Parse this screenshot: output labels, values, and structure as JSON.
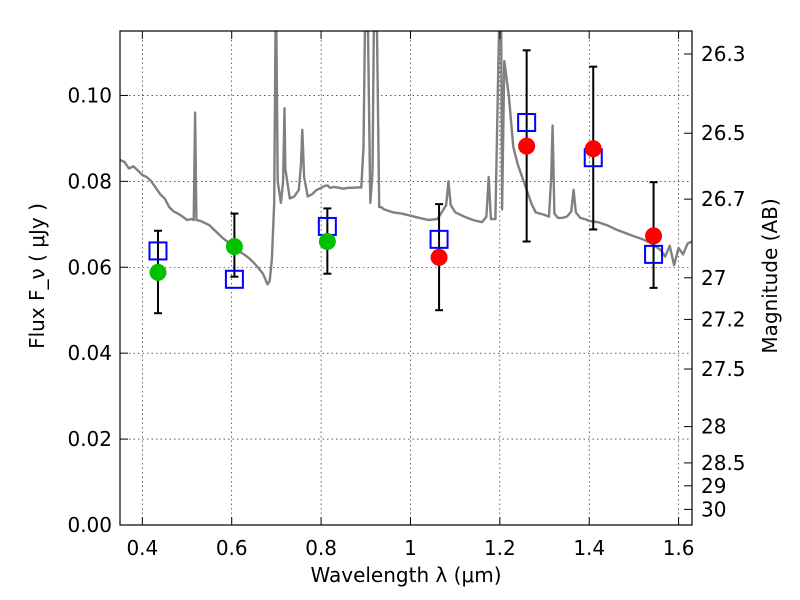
{
  "chart_data": {
    "type": "scatter",
    "xlabel": "Wavelength  λ (μm)",
    "ylabel": "Flux  F_ν  ( μJy )",
    "y2label": "Magnitude (AB)",
    "xlim": [
      0.35,
      1.63
    ],
    "ylim": [
      0.0,
      0.115
    ],
    "grid": true,
    "x_ticks": [
      {
        "value": 0.4,
        "label": "0.4"
      },
      {
        "value": 0.6,
        "label": "0.6"
      },
      {
        "value": 0.8,
        "label": "0.8"
      },
      {
        "value": 1.0,
        "label": "1"
      },
      {
        "value": 1.2,
        "label": "1.2"
      },
      {
        "value": 1.4,
        "label": "1.4"
      },
      {
        "value": 1.6,
        "label": "1.6"
      }
    ],
    "y_ticks": [
      {
        "value": 0.0,
        "label": "0.00"
      },
      {
        "value": 0.02,
        "label": "0.02"
      },
      {
        "value": 0.04,
        "label": "0.04"
      },
      {
        "value": 0.06,
        "label": "0.06"
      },
      {
        "value": 0.08,
        "label": "0.08"
      },
      {
        "value": 0.1,
        "label": "0.10"
      }
    ],
    "y2_ticks": [
      {
        "mag": 26.3,
        "label": "26.3"
      },
      {
        "mag": 26.5,
        "label": "26.5"
      },
      {
        "mag": 26.7,
        "label": "26.7"
      },
      {
        "mag": 27.0,
        "label": "27"
      },
      {
        "mag": 27.2,
        "label": "27.2"
      },
      {
        "mag": 27.5,
        "label": "27.5"
      },
      {
        "mag": 28.0,
        "label": "28"
      },
      {
        "mag": 28.5,
        "label": "28.5"
      },
      {
        "mag": 29.0,
        "label": "29"
      },
      {
        "mag": 30.0,
        "label": "30"
      }
    ],
    "series": [
      {
        "kind": "observed-errorbar",
        "points": [
          {
            "x": 0.435,
            "y": 0.0588,
            "err_lo": 0.0493,
            "err_hi": 0.0685,
            "color": "#00c000"
          },
          {
            "x": 0.606,
            "y": 0.0648,
            "err_lo": 0.0578,
            "err_hi": 0.0725,
            "color": "#00c000"
          },
          {
            "x": 0.814,
            "y": 0.066,
            "err_lo": 0.0585,
            "err_hi": 0.0737,
            "color": "#00c000"
          },
          {
            "x": 1.064,
            "y": 0.0623,
            "err_lo": 0.05,
            "err_hi": 0.0747,
            "color": "#ff0000"
          },
          {
            "x": 1.26,
            "y": 0.0882,
            "err_lo": 0.066,
            "err_hi": 0.1105,
            "color": "#ff0000"
          },
          {
            "x": 1.409,
            "y": 0.0876,
            "err_lo": 0.0688,
            "err_hi": 0.1067,
            "color": "#ff0000"
          },
          {
            "x": 1.544,
            "y": 0.0673,
            "err_lo": 0.0552,
            "err_hi": 0.0798,
            "color": "#ff0000"
          }
        ]
      },
      {
        "kind": "model-synthetic",
        "marker": "open-square",
        "color": "#0000ff",
        "points": [
          {
            "x": 0.435,
            "y": 0.0638
          },
          {
            "x": 0.606,
            "y": 0.0572
          },
          {
            "x": 0.814,
            "y": 0.0695
          },
          {
            "x": 1.064,
            "y": 0.0665
          },
          {
            "x": 1.26,
            "y": 0.0937
          },
          {
            "x": 1.409,
            "y": 0.0855
          },
          {
            "x": 1.544,
            "y": 0.063
          }
        ]
      },
      {
        "kind": "template-spectrum",
        "color": "#808080",
        "points": [
          [
            0.35,
            0.085
          ],
          [
            0.36,
            0.0845
          ],
          [
            0.37,
            0.083
          ],
          [
            0.38,
            0.0835
          ],
          [
            0.39,
            0.0825
          ],
          [
            0.4,
            0.0815
          ],
          [
            0.41,
            0.081
          ],
          [
            0.42,
            0.08
          ],
          [
            0.43,
            0.0785
          ],
          [
            0.44,
            0.077
          ],
          [
            0.45,
            0.076
          ],
          [
            0.46,
            0.074
          ],
          [
            0.47,
            0.073
          ],
          [
            0.48,
            0.0725
          ],
          [
            0.49,
            0.0718
          ],
          [
            0.5,
            0.071
          ],
          [
            0.51,
            0.0712
          ],
          [
            0.515,
            0.071
          ],
          [
            0.518,
            0.096
          ],
          [
            0.521,
            0.071
          ],
          [
            0.53,
            0.0708
          ],
          [
            0.54,
            0.0703
          ],
          [
            0.55,
            0.0698
          ],
          [
            0.56,
            0.0688
          ],
          [
            0.57,
            0.0678
          ],
          [
            0.58,
            0.0668
          ],
          [
            0.59,
            0.066
          ],
          [
            0.6,
            0.0652
          ],
          [
            0.61,
            0.0645
          ],
          [
            0.62,
            0.0635
          ],
          [
            0.63,
            0.0628
          ],
          [
            0.64,
            0.062
          ],
          [
            0.65,
            0.061
          ],
          [
            0.66,
            0.0598
          ],
          [
            0.67,
            0.0585
          ],
          [
            0.68,
            0.056
          ],
          [
            0.685,
            0.0568
          ],
          [
            0.69,
            0.062
          ],
          [
            0.695,
            0.075
          ],
          [
            0.698,
            0.115
          ],
          [
            0.7,
            0.115
          ],
          [
            0.703,
            0.08
          ],
          [
            0.71,
            0.075
          ],
          [
            0.715,
            0.08
          ],
          [
            0.718,
            0.097
          ],
          [
            0.72,
            0.083
          ],
          [
            0.73,
            0.076
          ],
          [
            0.74,
            0.0765
          ],
          [
            0.75,
            0.078
          ],
          [
            0.755,
            0.084
          ],
          [
            0.758,
            0.092
          ],
          [
            0.762,
            0.081
          ],
          [
            0.77,
            0.0765
          ],
          [
            0.78,
            0.077
          ],
          [
            0.79,
            0.078
          ],
          [
            0.8,
            0.0785
          ],
          [
            0.81,
            0.079
          ],
          [
            0.815,
            0.079
          ],
          [
            0.82,
            0.0785
          ],
          [
            0.83,
            0.0787
          ],
          [
            0.84,
            0.0785
          ],
          [
            0.85,
            0.0783
          ],
          [
            0.86,
            0.0785
          ],
          [
            0.87,
            0.0785
          ],
          [
            0.88,
            0.0786
          ],
          [
            0.89,
            0.0786
          ],
          [
            0.895,
            0.088
          ],
          [
            0.898,
            0.115
          ],
          [
            0.905,
            0.115
          ],
          [
            0.91,
            0.075
          ],
          [
            0.915,
            0.082
          ],
          [
            0.918,
            0.115
          ],
          [
            0.925,
            0.115
          ],
          [
            0.93,
            0.074
          ],
          [
            0.935,
            0.074
          ],
          [
            0.94,
            0.0735
          ],
          [
            0.96,
            0.0728
          ],
          [
            0.98,
            0.0725
          ],
          [
            1.0,
            0.072
          ],
          [
            1.02,
            0.0715
          ],
          [
            1.04,
            0.071
          ],
          [
            1.06,
            0.0712
          ],
          [
            1.07,
            0.0728
          ],
          [
            1.08,
            0.0745
          ],
          [
            1.085,
            0.08
          ],
          [
            1.09,
            0.0745
          ],
          [
            1.1,
            0.0728
          ],
          [
            1.12,
            0.0718
          ],
          [
            1.14,
            0.071
          ],
          [
            1.16,
            0.0705
          ],
          [
            1.17,
            0.0718
          ],
          [
            1.175,
            0.081
          ],
          [
            1.18,
            0.0712
          ],
          [
            1.19,
            0.0712
          ],
          [
            1.198,
            0.115
          ],
          [
            1.203,
            0.115
          ],
          [
            1.205,
            0.0735
          ],
          [
            1.21,
            0.108
          ],
          [
            1.22,
            0.1
          ],
          [
            1.23,
            0.088
          ],
          [
            1.24,
            0.084
          ],
          [
            1.25,
            0.081
          ],
          [
            1.26,
            0.078
          ],
          [
            1.27,
            0.075
          ],
          [
            1.28,
            0.0728
          ],
          [
            1.29,
            0.0725
          ],
          [
            1.3,
            0.0722
          ],
          [
            1.31,
            0.0718
          ],
          [
            1.315,
            0.081
          ],
          [
            1.318,
            0.093
          ],
          [
            1.322,
            0.0725
          ],
          [
            1.33,
            0.0715
          ],
          [
            1.34,
            0.0715
          ],
          [
            1.35,
            0.0718
          ],
          [
            1.36,
            0.073
          ],
          [
            1.365,
            0.078
          ],
          [
            1.37,
            0.0728
          ],
          [
            1.38,
            0.0715
          ],
          [
            1.39,
            0.0712
          ],
          [
            1.4,
            0.0708
          ],
          [
            1.42,
            0.0705
          ],
          [
            1.44,
            0.0698
          ],
          [
            1.46,
            0.0688
          ],
          [
            1.48,
            0.068
          ],
          [
            1.5,
            0.0672
          ],
          [
            1.52,
            0.0665
          ],
          [
            1.54,
            0.0655
          ],
          [
            1.56,
            0.064
          ],
          [
            1.57,
            0.0625
          ],
          [
            1.58,
            0.065
          ],
          [
            1.59,
            0.0605
          ],
          [
            1.6,
            0.0645
          ],
          [
            1.61,
            0.063
          ],
          [
            1.62,
            0.0655
          ],
          [
            1.63,
            0.066
          ]
        ]
      }
    ]
  }
}
